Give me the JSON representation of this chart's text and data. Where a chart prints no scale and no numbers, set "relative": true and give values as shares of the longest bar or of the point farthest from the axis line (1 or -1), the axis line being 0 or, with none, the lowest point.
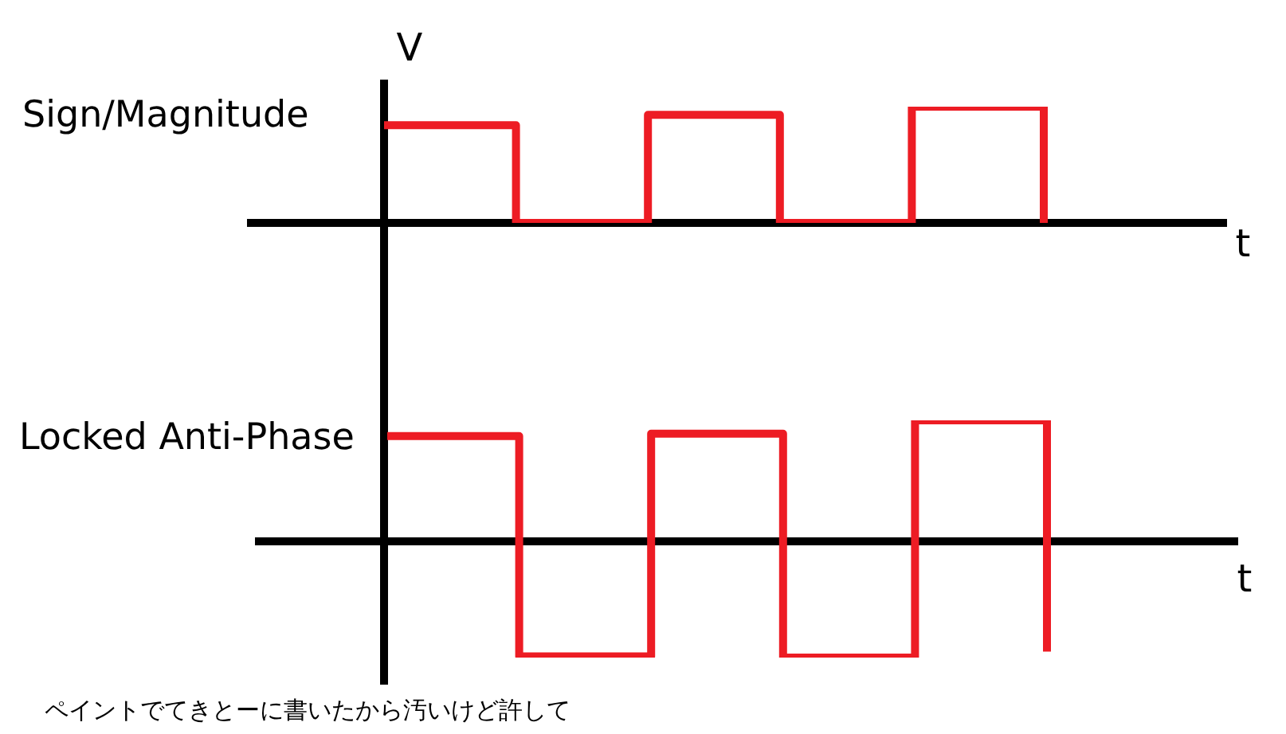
{
  "chart_data": [
    {
      "type": "step",
      "ylabel": "V",
      "xlabel": "t",
      "categories": [
        null,
        null,
        null,
        null,
        null,
        null
      ],
      "series": [
        {
          "name": "Sign/Magnitude",
          "color": "#ed1c24",
          "values": [
            0.84,
            0,
            0.93,
            0,
            1,
            0
          ]
        }
      ],
      "relative": true,
      "tick_labels": false
    },
    {
      "type": "step",
      "xlabel": "t",
      "categories": [
        null,
        null,
        null,
        null,
        null,
        null
      ],
      "series": [
        {
          "name": "Locked Anti-Phase",
          "color": "#ed1c24",
          "values": [
            0.87,
            -0.95,
            0.89,
            -0.96,
            1,
            -0.91
          ]
        }
      ],
      "relative": true,
      "tick_labels": false,
      "annotations": [
        "ペイントでてきとーに書いたから汚いけど許して"
      ]
    }
  ]
}
